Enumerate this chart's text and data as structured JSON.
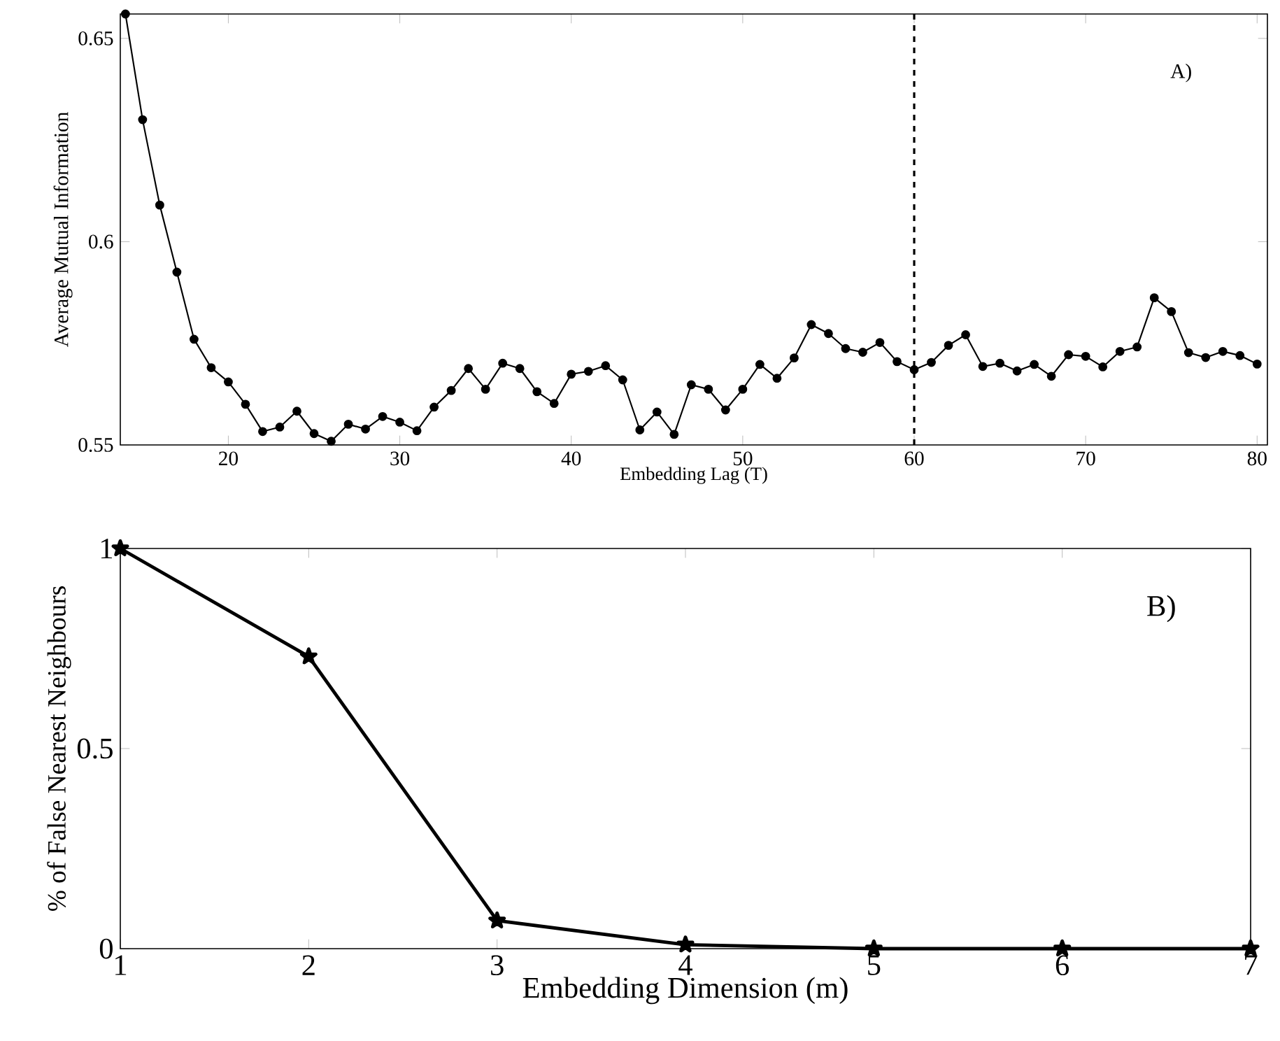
{
  "chart_data": [
    {
      "type": "line",
      "xlabel": "Embedding Lag (T)",
      "ylabel": "Average Mutual Information",
      "annotations": [
        "A)"
      ],
      "marker": "circle",
      "line_style": "solid",
      "x": [
        14,
        15,
        16,
        17,
        18,
        19,
        20,
        21,
        22,
        23,
        24,
        25,
        26,
        27,
        28,
        29,
        30,
        31,
        32,
        33,
        34,
        35,
        36,
        37,
        38,
        39,
        40,
        41,
        42,
        43,
        44,
        45,
        46,
        47,
        48,
        49,
        50,
        51,
        52,
        53,
        54,
        55,
        56,
        57,
        58,
        59,
        60,
        61,
        62,
        63,
        64,
        65,
        66,
        67,
        68,
        69,
        70,
        71,
        72,
        73,
        74,
        75,
        76,
        77,
        78,
        79,
        80
      ],
      "series": [
        {
          "color": "#000000",
          "values": [
            0.656,
            0.63,
            0.609,
            0.5925,
            0.576,
            0.569,
            0.5655,
            0.56,
            0.5533,
            0.5544,
            0.5583,
            0.5528,
            0.5509,
            0.5551,
            0.5539,
            0.557,
            0.5556,
            0.5535,
            0.5593,
            0.5634,
            0.5688,
            0.5637,
            0.5701,
            0.5688,
            0.5631,
            0.5602,
            0.5674,
            0.5681,
            0.5695,
            0.566,
            0.5537,
            0.5581,
            0.5526,
            0.5648,
            0.5637,
            0.5586,
            0.5637,
            0.5698,
            0.5664,
            0.5714,
            0.5796,
            0.5774,
            0.5737,
            0.5728,
            0.5752,
            0.5705,
            0.5685,
            0.5703,
            0.5745,
            0.5771,
            0.5693,
            0.5701,
            0.5682,
            0.5698,
            0.5669,
            0.5722,
            0.5718,
            0.5692,
            0.573,
            0.5741,
            0.5862,
            0.5828,
            0.5727,
            0.5715,
            0.573,
            0.572,
            0.5699
          ]
        }
      ],
      "xlim": [
        13.7,
        80.6
      ],
      "ylim": [
        0.55,
        0.656
      ],
      "xticks": [
        20,
        30,
        40,
        50,
        60,
        70,
        80
      ],
      "yticks": [
        0.55,
        0.6,
        0.65
      ],
      "ref_lines": [
        {
          "axis": "x",
          "value": 60,
          "line_style": "dashed",
          "color": "#000000"
        }
      ]
    },
    {
      "type": "line",
      "xlabel": "Embedding Dimension (m)",
      "ylabel": "% of False Nearest Neighbours",
      "annotations": [
        "B)"
      ],
      "marker": "star",
      "line_style": "solid",
      "x": [
        1,
        2,
        3,
        4,
        5,
        6,
        7
      ],
      "series": [
        {
          "color": "#000000",
          "values": [
            1,
            0.73,
            0.07,
            0.01,
            0,
            0,
            0
          ]
        }
      ],
      "xlim": [
        1,
        7
      ],
      "ylim": [
        0,
        1
      ],
      "xticks": [
        1,
        2,
        3,
        4,
        5,
        6,
        7
      ],
      "yticks": [
        0,
        0.5,
        1
      ]
    }
  ]
}
